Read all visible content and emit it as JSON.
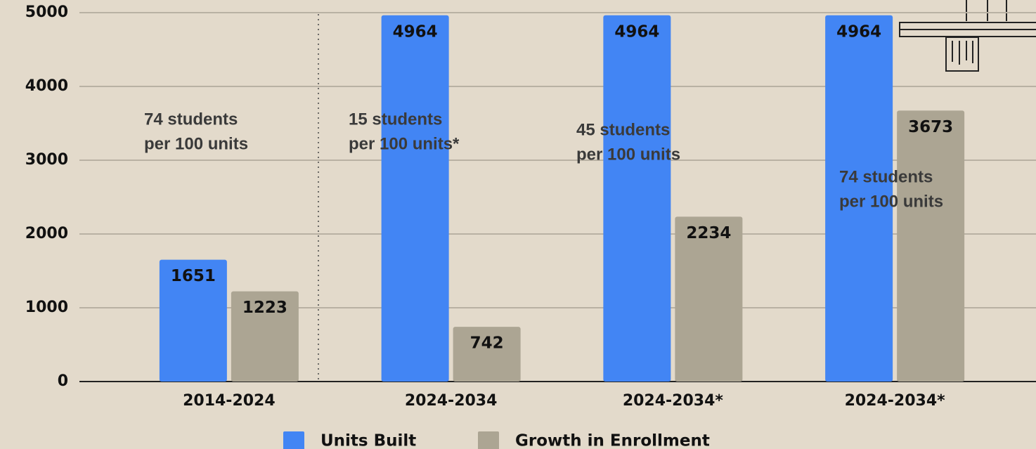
{
  "chart_data": {
    "type": "bar",
    "categories": [
      "2014-2024",
      "2024-2034",
      "2024-2034*",
      "2024-2034*"
    ],
    "series": [
      {
        "name": "Units Built",
        "color": "#4285f4",
        "values": [
          1651,
          4964,
          4964,
          4964
        ]
      },
      {
        "name": "Growth in Enrollment",
        "color": "#aca593",
        "values": [
          1223,
          742,
          2234,
          3673
        ]
      }
    ],
    "ylim": [
      0,
      5000
    ],
    "yticks": [
      0,
      1000,
      2000,
      3000,
      4000,
      5000
    ],
    "grid": true,
    "annotations": [
      [
        "74 students",
        "per 100 units"
      ],
      [
        "15 students",
        "per 100 units*"
      ],
      [
        "45 students",
        "per 100 units"
      ],
      [
        "74 students",
        "per 100 units"
      ]
    ]
  }
}
